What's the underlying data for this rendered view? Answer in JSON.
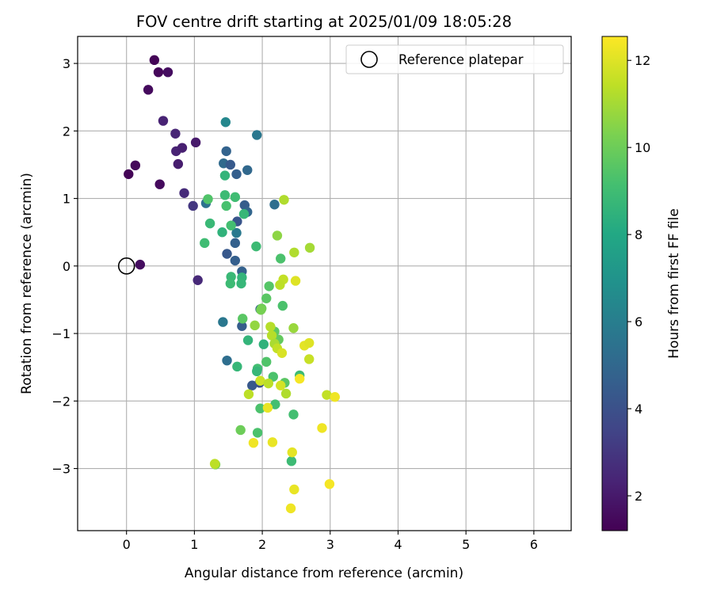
{
  "chart_data": {
    "type": "scatter",
    "title": "FOV centre drift starting at 2025/01/09 18:05:28",
    "xlabel": "Angular distance from reference (arcmin)",
    "ylabel": "Rotation from reference (arcmin)",
    "xlim": [
      -0.72,
      6.55
    ],
    "ylim": [
      -3.92,
      3.4
    ],
    "x_ticks": [
      0,
      1,
      2,
      3,
      4,
      5,
      6
    ],
    "y_ticks": [
      -3,
      -2,
      -1,
      0,
      1,
      2,
      3
    ],
    "x_tick_labels": [
      "0",
      "1",
      "2",
      "3",
      "4",
      "5",
      "6"
    ],
    "y_tick_labels": [
      "−3",
      "−2",
      "−1",
      "0",
      "1",
      "2",
      "3"
    ],
    "grid": true,
    "legend": {
      "placement": "top-right",
      "entries": [
        "Reference platepar"
      ]
    },
    "reference_point": {
      "x": 0,
      "y": 0,
      "label": "Reference platepar"
    },
    "colorbar": {
      "label": "Hours from first FF file",
      "colormap": "viridis",
      "range": [
        1.2,
        12.55
      ],
      "ticks": [
        2,
        4,
        6,
        8,
        10,
        12
      ],
      "tick_labels": [
        "2",
        "4",
        "6",
        "8",
        "10",
        "12"
      ]
    },
    "points": [
      {
        "x": 0.41,
        "y": 3.05,
        "c": 1.3
      },
      {
        "x": 0.47,
        "y": 2.87,
        "c": 1.4
      },
      {
        "x": 0.61,
        "y": 2.87,
        "c": 1.6
      },
      {
        "x": 0.32,
        "y": 2.61,
        "c": 1.5
      },
      {
        "x": 0.54,
        "y": 2.15,
        "c": 2.3
      },
      {
        "x": 0.72,
        "y": 1.96,
        "c": 2.4
      },
      {
        "x": 0.73,
        "y": 1.7,
        "c": 2.3
      },
      {
        "x": 0.82,
        "y": 1.75,
        "c": 2.2
      },
      {
        "x": 1.02,
        "y": 1.83,
        "c": 2.0
      },
      {
        "x": 0.76,
        "y": 1.51,
        "c": 2.1
      },
      {
        "x": 0.13,
        "y": 1.49,
        "c": 1.4
      },
      {
        "x": 0.03,
        "y": 1.36,
        "c": 1.3
      },
      {
        "x": 0.49,
        "y": 1.21,
        "c": 1.5
      },
      {
        "x": 0.85,
        "y": 1.08,
        "c": 2.6
      },
      {
        "x": 0.98,
        "y": 0.89,
        "c": 3.0
      },
      {
        "x": 0.2,
        "y": 0.02,
        "c": 1.6
      },
      {
        "x": 1.05,
        "y": -0.21,
        "c": 2.5
      },
      {
        "x": 1.46,
        "y": 2.13,
        "c": 6.4
      },
      {
        "x": 1.92,
        "y": 1.94,
        "c": 5.7
      },
      {
        "x": 1.47,
        "y": 1.7,
        "c": 4.8
      },
      {
        "x": 1.43,
        "y": 1.52,
        "c": 5.1
      },
      {
        "x": 1.53,
        "y": 1.5,
        "c": 4.4
      },
      {
        "x": 1.78,
        "y": 1.42,
        "c": 5.0
      },
      {
        "x": 1.62,
        "y": 1.36,
        "c": 4.6
      },
      {
        "x": 1.17,
        "y": 0.93,
        "c": 5.4
      },
      {
        "x": 1.74,
        "y": 0.9,
        "c": 4.5
      },
      {
        "x": 2.18,
        "y": 0.91,
        "c": 5.3
      },
      {
        "x": 1.78,
        "y": 0.8,
        "c": 4.9
      },
      {
        "x": 1.63,
        "y": 0.66,
        "c": 4.2
      },
      {
        "x": 1.62,
        "y": 0.49,
        "c": 5.8
      },
      {
        "x": 1.6,
        "y": 0.34,
        "c": 4.7
      },
      {
        "x": 1.48,
        "y": 0.18,
        "c": 4.3
      },
      {
        "x": 1.6,
        "y": 0.08,
        "c": 4.6
      },
      {
        "x": 1.7,
        "y": -0.08,
        "c": 4.7
      },
      {
        "x": 1.97,
        "y": -0.64,
        "c": 4.9
      },
      {
        "x": 1.42,
        "y": -0.83,
        "c": 5.7
      },
      {
        "x": 1.7,
        "y": -0.89,
        "c": 4.5
      },
      {
        "x": 1.48,
        "y": -1.4,
        "c": 5.3
      },
      {
        "x": 1.85,
        "y": -1.77,
        "c": 4.3
      },
      {
        "x": 1.96,
        "y": -1.73,
        "c": 4.0
      },
      {
        "x": 1.63,
        "y": -1.49,
        "c": 8.7
      },
      {
        "x": 1.45,
        "y": 1.34,
        "c": 8.6
      },
      {
        "x": 1.45,
        "y": 1.05,
        "c": 8.9
      },
      {
        "x": 1.6,
        "y": 1.02,
        "c": 9.0
      },
      {
        "x": 1.2,
        "y": 0.99,
        "c": 9.4
      },
      {
        "x": 1.47,
        "y": 0.89,
        "c": 9.2
      },
      {
        "x": 1.73,
        "y": 0.77,
        "c": 8.7
      },
      {
        "x": 1.23,
        "y": 0.63,
        "c": 8.8
      },
      {
        "x": 1.54,
        "y": 0.6,
        "c": 9.1
      },
      {
        "x": 1.41,
        "y": 0.5,
        "c": 8.5
      },
      {
        "x": 1.15,
        "y": 0.34,
        "c": 9.0
      },
      {
        "x": 1.91,
        "y": 0.29,
        "c": 8.9
      },
      {
        "x": 2.22,
        "y": 0.45,
        "c": 10.6
      },
      {
        "x": 2.27,
        "y": 0.11,
        "c": 9.3
      },
      {
        "x": 1.54,
        "y": -0.16,
        "c": 8.8
      },
      {
        "x": 1.7,
        "y": -0.17,
        "c": 8.6
      },
      {
        "x": 1.53,
        "y": -0.26,
        "c": 8.9
      },
      {
        "x": 1.69,
        "y": -0.26,
        "c": 8.7
      },
      {
        "x": 2.1,
        "y": -0.3,
        "c": 9.5
      },
      {
        "x": 2.06,
        "y": -0.48,
        "c": 9.6
      },
      {
        "x": 2.3,
        "y": -0.59,
        "c": 9.3
      },
      {
        "x": 1.99,
        "y": -0.63,
        "c": 10.0
      },
      {
        "x": 1.71,
        "y": -0.78,
        "c": 9.6
      },
      {
        "x": 2.18,
        "y": -0.97,
        "c": 9.7
      },
      {
        "x": 1.79,
        "y": -1.1,
        "c": 8.6
      },
      {
        "x": 2.02,
        "y": -1.16,
        "c": 8.5
      },
      {
        "x": 2.24,
        "y": -1.09,
        "c": 9.8
      },
      {
        "x": 2.06,
        "y": -1.42,
        "c": 9.4
      },
      {
        "x": 1.93,
        "y": -1.52,
        "c": 9.1
      },
      {
        "x": 1.92,
        "y": -1.56,
        "c": 8.7
      },
      {
        "x": 2.16,
        "y": -1.64,
        "c": 9.3
      },
      {
        "x": 2.33,
        "y": -1.73,
        "c": 9.6
      },
      {
        "x": 2.55,
        "y": -1.62,
        "c": 8.9
      },
      {
        "x": 2.19,
        "y": -2.05,
        "c": 9.1
      },
      {
        "x": 1.97,
        "y": -2.11,
        "c": 9.3
      },
      {
        "x": 2.46,
        "y": -2.2,
        "c": 9.1
      },
      {
        "x": 1.68,
        "y": -2.43,
        "c": 10.0
      },
      {
        "x": 1.93,
        "y": -2.47,
        "c": 9.3
      },
      {
        "x": 2.43,
        "y": -2.89,
        "c": 8.9
      },
      {
        "x": 1.31,
        "y": -2.94,
        "c": 10.3
      },
      {
        "x": 2.32,
        "y": 0.98,
        "c": 11.2
      },
      {
        "x": 2.47,
        "y": 0.2,
        "c": 11.2
      },
      {
        "x": 2.7,
        "y": 0.27,
        "c": 11.0
      },
      {
        "x": 2.31,
        "y": -0.2,
        "c": 11.5
      },
      {
        "x": 2.49,
        "y": -0.22,
        "c": 12.0
      },
      {
        "x": 2.26,
        "y": -0.28,
        "c": 11.4
      },
      {
        "x": 1.98,
        "y": -0.65,
        "c": 10.2
      },
      {
        "x": 1.89,
        "y": -0.88,
        "c": 10.7
      },
      {
        "x": 2.12,
        "y": -0.9,
        "c": 11.3
      },
      {
        "x": 2.46,
        "y": -0.92,
        "c": 10.8
      },
      {
        "x": 2.14,
        "y": -1.03,
        "c": 11.3
      },
      {
        "x": 2.18,
        "y": -1.15,
        "c": 11.1
      },
      {
        "x": 2.22,
        "y": -1.22,
        "c": 11.5
      },
      {
        "x": 2.29,
        "y": -1.29,
        "c": 11.9
      },
      {
        "x": 2.62,
        "y": -1.18,
        "c": 12.1
      },
      {
        "x": 2.69,
        "y": -1.14,
        "c": 12.0
      },
      {
        "x": 2.69,
        "y": -1.38,
        "c": 11.6
      },
      {
        "x": 1.97,
        "y": -1.7,
        "c": 11.7
      },
      {
        "x": 2.09,
        "y": -1.74,
        "c": 11.4
      },
      {
        "x": 2.27,
        "y": -1.77,
        "c": 11.8
      },
      {
        "x": 2.55,
        "y": -1.67,
        "c": 12.4
      },
      {
        "x": 1.8,
        "y": -1.9,
        "c": 11.4
      },
      {
        "x": 2.35,
        "y": -1.89,
        "c": 11.2
      },
      {
        "x": 2.95,
        "y": -1.91,
        "c": 11.5
      },
      {
        "x": 3.07,
        "y": -1.94,
        "c": 12.3
      },
      {
        "x": 2.08,
        "y": -2.1,
        "c": 12.2
      },
      {
        "x": 2.88,
        "y": -2.4,
        "c": 12.3
      },
      {
        "x": 1.87,
        "y": -2.62,
        "c": 12.3
      },
      {
        "x": 2.15,
        "y": -2.61,
        "c": 12.2
      },
      {
        "x": 2.44,
        "y": -2.76,
        "c": 12.1
      },
      {
        "x": 1.3,
        "y": -2.93,
        "c": 11.4
      },
      {
        "x": 2.47,
        "y": -3.31,
        "c": 12.2
      },
      {
        "x": 2.99,
        "y": -3.23,
        "c": 12.4
      },
      {
        "x": 2.42,
        "y": -3.59,
        "c": 12.3
      }
    ]
  }
}
